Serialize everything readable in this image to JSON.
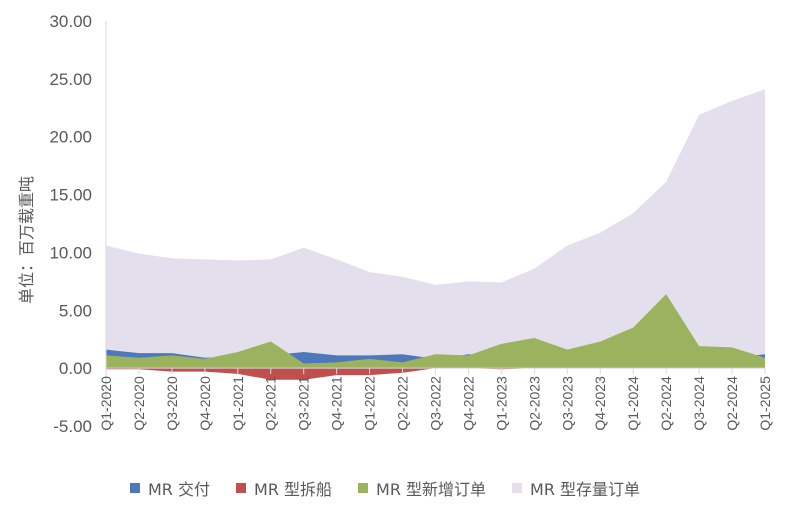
{
  "chart_data": {
    "type": "area",
    "ylabel": "单位：百万载重吨",
    "ylim": [
      -5,
      30
    ],
    "yticks": [
      "-5.00",
      "0.00",
      "5.00",
      "10.00",
      "15.00",
      "20.00",
      "25.00",
      "30.00"
    ],
    "categories": [
      "Q1-2020",
      "Q2-2020",
      "Q3-2020",
      "Q4-2020",
      "Q1-2021",
      "Q2-2021",
      "Q3-2021",
      "Q4-2021",
      "Q1-2022",
      "Q2-2022",
      "Q3-2022",
      "Q4-2022",
      "Q1-2023",
      "Q2-2023",
      "Q3-2023",
      "Q4-2023",
      "Q1-2024",
      "Q2-2024",
      "Q3-2024",
      "Q2-2024",
      "Q1-2025"
    ],
    "series": [
      {
        "name": "MR 型存量订单",
        "color": "#E4DFEC",
        "values": [
          10.6,
          9.9,
          9.5,
          9.4,
          9.3,
          9.4,
          10.4,
          9.4,
          8.3,
          7.9,
          7.2,
          7.5,
          7.4,
          8.6,
          10.6,
          11.7,
          13.4,
          16.1,
          21.9,
          23.1,
          24.1
        ]
      },
      {
        "name": "MR 交付",
        "color": "#4F77BB",
        "values": [
          1.6,
          1.3,
          1.3,
          0.9,
          1.0,
          1.1,
          1.4,
          1.1,
          1.1,
          1.2,
          0.8,
          1.2,
          1.0,
          0.9,
          0.9,
          1.0,
          0.8,
          0.8,
          1.0,
          0.9,
          1.2
        ]
      },
      {
        "name": "MR 型新增订单",
        "color": "#9BB35E",
        "values": [
          1.1,
          0.9,
          1.1,
          0.8,
          1.4,
          2.3,
          0.4,
          0.5,
          0.8,
          0.5,
          1.2,
          1.1,
          2.1,
          2.6,
          1.6,
          2.3,
          3.5,
          6.4,
          1.9,
          1.8,
          0.9
        ]
      },
      {
        "name": "MR 型拆船",
        "color": "#C0504D",
        "values": [
          -0.1,
          -0.1,
          -0.3,
          -0.3,
          -0.5,
          -1.0,
          -1.0,
          -0.6,
          -0.6,
          -0.4,
          0,
          0,
          -0.1,
          0,
          0,
          0,
          0,
          0,
          0,
          0,
          0
        ]
      }
    ],
    "legend": [
      "MR 交付",
      "MR 型拆船",
      "MR 型新增订单",
      "MR 型存量订单"
    ],
    "legend_position": "bottom",
    "grid": false
  },
  "colors": {
    "axis": "#D9D9D9",
    "tick_text": "#595959"
  }
}
